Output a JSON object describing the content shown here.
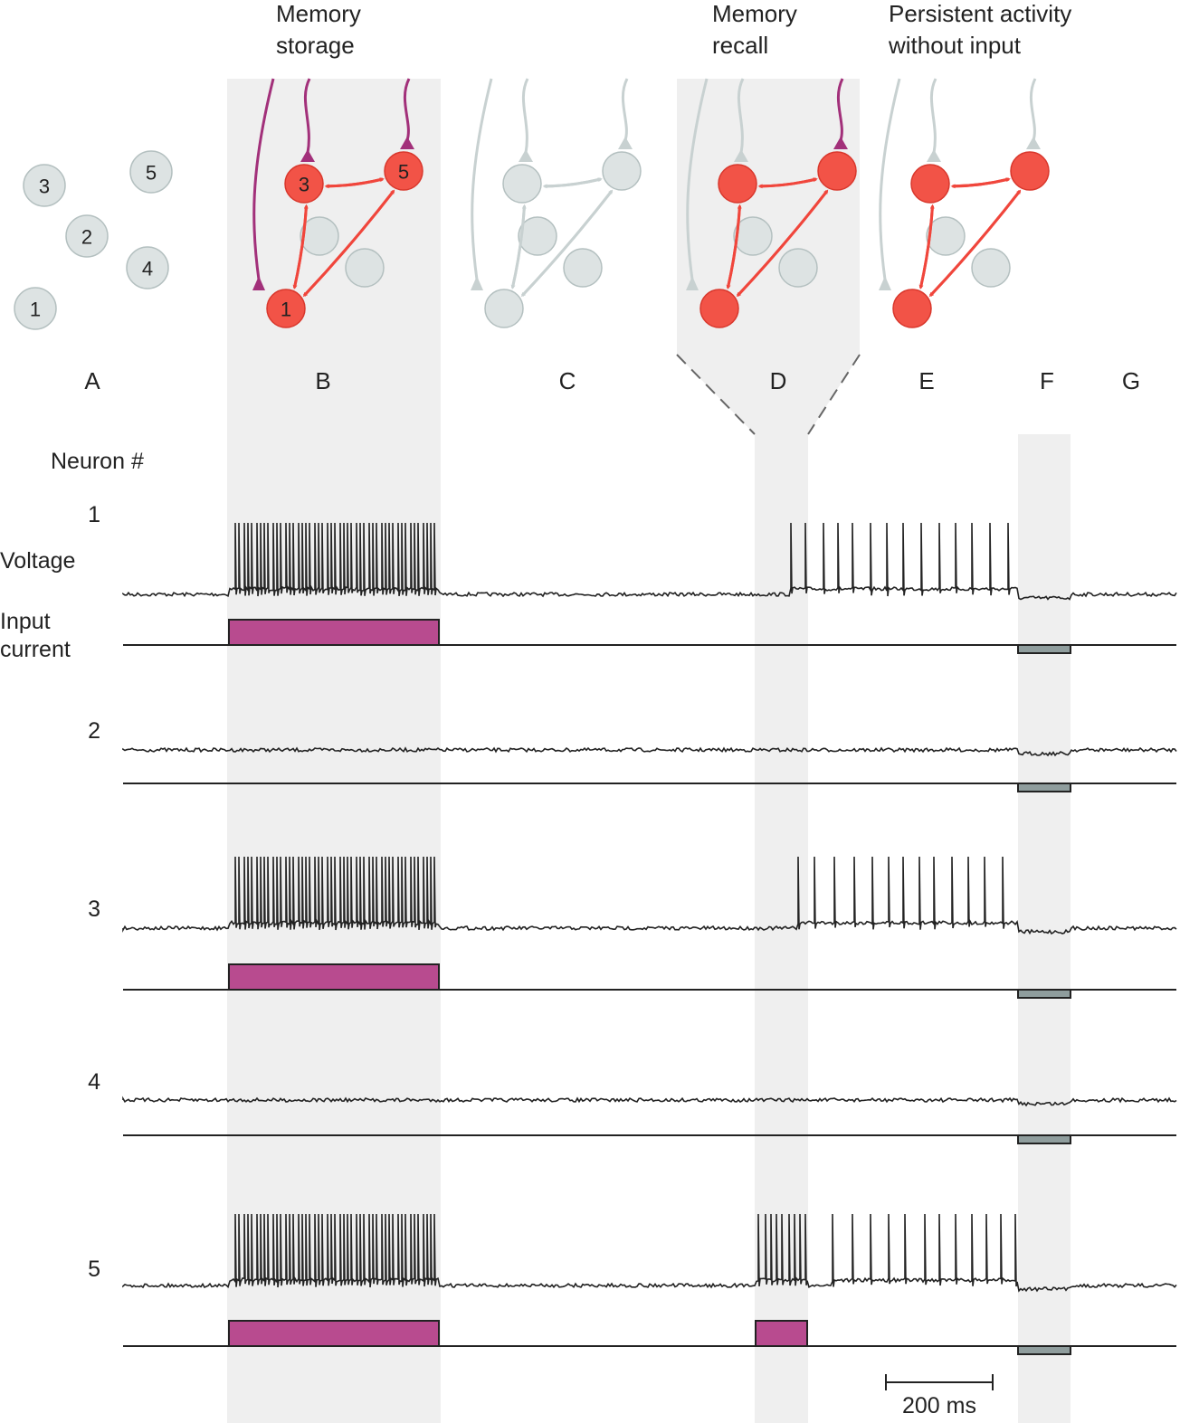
{
  "headers": {
    "storage": [
      "Memory",
      "storage"
    ],
    "recall": [
      "Memory",
      "recall"
    ],
    "persistent": [
      "Persistent activity",
      "without input"
    ]
  },
  "panels": [
    "A",
    "B",
    "C",
    "D",
    "E",
    "F",
    "G"
  ],
  "trace_labels": {
    "neuron_header": "Neuron #",
    "voltage": "Voltage",
    "input_current": [
      "Input",
      "current"
    ]
  },
  "neuron_ids": [
    "1",
    "2",
    "3",
    "4",
    "5"
  ],
  "scale_bar": {
    "label": "200 ms",
    "duration_ms": 200
  },
  "colors": {
    "active": "#f0463c",
    "active_fill": "#f25347",
    "inactive": "#dde3e3",
    "inactive_stroke": "#b4c0c0",
    "input_axon": "#a2307a",
    "input_pulse": "#b84b8f",
    "inhibit_pulse": "#8f9d9d",
    "shade": "#efefef",
    "trace": "#222222"
  },
  "network": {
    "members": [
      "1",
      "3",
      "5"
    ],
    "connections": [
      [
        "1",
        "3"
      ],
      [
        "3",
        "1"
      ],
      [
        "3",
        "5"
      ],
      [
        "5",
        "3"
      ],
      [
        "1",
        "5"
      ],
      [
        "5",
        "1"
      ]
    ],
    "external_inputs": [
      "1",
      "3",
      "5"
    ]
  },
  "timeline": {
    "epochs": [
      {
        "panel": "B",
        "event": "memory storage",
        "stimulated": [
          "1",
          "3",
          "5"
        ]
      },
      {
        "panel": "D",
        "event": "memory recall",
        "stimulated": [
          "5"
        ]
      },
      {
        "panel": "F",
        "event": "negative input",
        "stimulated": [
          "1",
          "2",
          "3",
          "4",
          "5"
        ]
      }
    ],
    "active_neurons": [
      "1",
      "3",
      "5"
    ],
    "silent_neurons": [
      "2",
      "4"
    ]
  }
}
